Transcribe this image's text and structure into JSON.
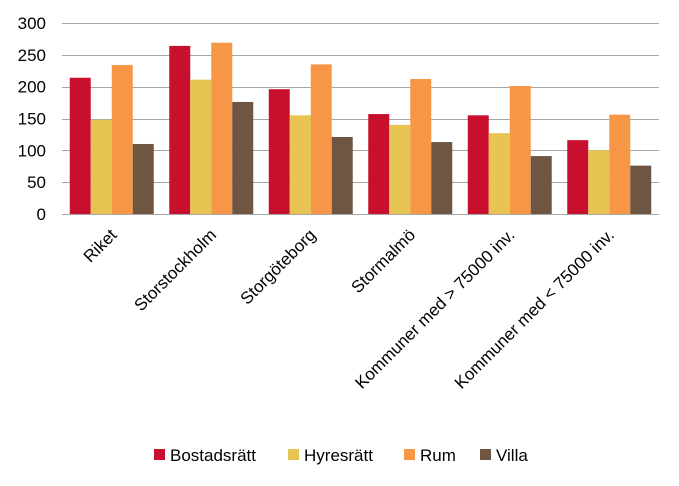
{
  "chart_data": {
    "type": "bar",
    "categories": [
      "Riket",
      "Storstockholm",
      "Storgöteborg",
      "Stormalmö",
      "Kommuner med > 75000 inv.",
      "Kommuner med < 75000 inv."
    ],
    "series": [
      {
        "name": "Bostadsrätt",
        "color": "#C8102E",
        "values": [
          214,
          264,
          196,
          157,
          155,
          116
        ]
      },
      {
        "name": "Hyresrätt",
        "color": "#E8C552",
        "values": [
          148,
          211,
          155,
          140,
          127,
          100
        ]
      },
      {
        "name": "Rum",
        "color": "#F79646",
        "values": [
          234,
          269,
          235,
          212,
          201,
          156
        ]
      },
      {
        "name": "Villa",
        "color": "#6F5643",
        "values": [
          110,
          176,
          121,
          113,
          91,
          76
        ]
      }
    ],
    "ylim": [
      0,
      300
    ],
    "yticks": [
      0,
      50,
      100,
      150,
      200,
      250,
      300
    ],
    "grid": true,
    "legend_position": "bottom",
    "title": "",
    "xlabel": "",
    "ylabel": ""
  }
}
